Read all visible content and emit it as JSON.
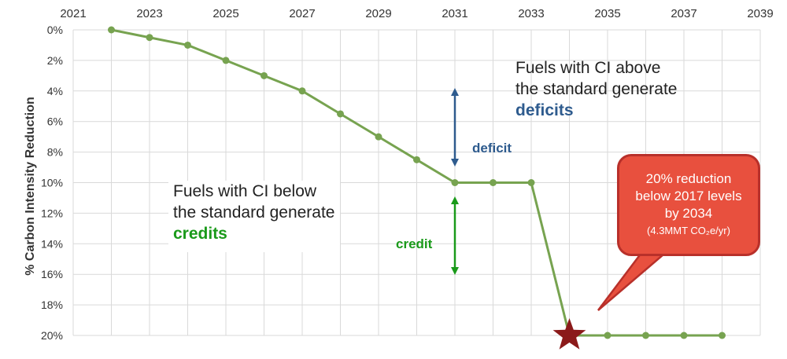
{
  "chart_data": {
    "type": "line",
    "x_ticks": [
      "2021",
      "2023",
      "2025",
      "2027",
      "2029",
      "2031",
      "2033",
      "2035",
      "2037",
      "2039"
    ],
    "y_ticks": [
      "0%",
      "2%",
      "4%",
      "6%",
      "8%",
      "10%",
      "12%",
      "14%",
      "16%",
      "18%",
      "20%"
    ],
    "xlim": [
      2021,
      2039
    ],
    "ylim": [
      0,
      20
    ],
    "y_axis_reversed": true,
    "x_axis_position": "top",
    "ylabel": "% Carbon Intensity Reduction",
    "grid": true,
    "series": [
      {
        "color": "#77a350",
        "x": [
          2022,
          2023,
          2024,
          2025,
          2026,
          2027,
          2028,
          2029,
          2030,
          2031,
          2032,
          2033,
          2034,
          2035,
          2036,
          2037,
          2038
        ],
        "values": [
          0,
          0.5,
          1,
          2,
          3,
          4,
          5.5,
          7,
          8.5,
          10,
          10,
          10,
          20,
          20,
          20,
          20,
          20
        ]
      }
    ],
    "star_marker": {
      "x": 2034,
      "y": 20,
      "color": "#8b1a1a"
    }
  },
  "annotations": {
    "above_line1": "Fuels with CI above",
    "above_line2": "the standard generate",
    "above_emph": "deficits",
    "below_line1": "Fuels with CI below",
    "below_line2": "the standard generate",
    "below_emph": "credits",
    "deficit_label": "deficit",
    "credit_label": "credit",
    "callout_line1": "20% reduction",
    "callout_line2": "below 2017 levels",
    "callout_line3": "by 2034",
    "callout_line4": "(4.3MMT CO₂e/yr)"
  },
  "colors": {
    "deficit": "#2e5b8e",
    "credit": "#1a9a1a",
    "callout_fill": "#e8503e",
    "callout_border": "#b8302a"
  }
}
